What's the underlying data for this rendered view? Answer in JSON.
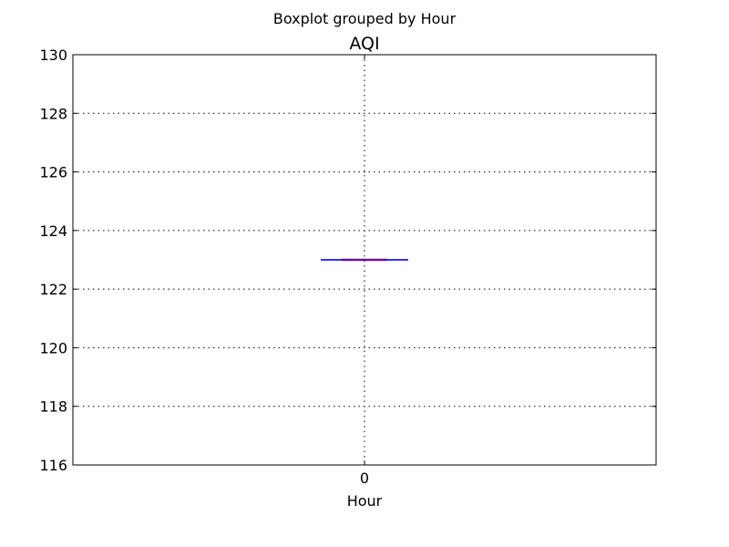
{
  "chart_data": {
    "type": "box",
    "suptitle": "Boxplot grouped by Hour",
    "title": "AQI",
    "xlabel": "Hour",
    "ylabel": "",
    "categories": [
      "0"
    ],
    "ylim": [
      116,
      130
    ],
    "yticks": [
      116,
      118,
      120,
      122,
      124,
      126,
      128,
      130
    ],
    "grid": true,
    "boxes": [
      {
        "category": "0",
        "min": 123,
        "q1": 123,
        "median": 123,
        "q3": 123,
        "max": 123
      }
    ],
    "colors": {
      "box": "#0000ff",
      "median": "#ff0000",
      "whisker": "#0000ff",
      "grid": "#000000"
    }
  }
}
